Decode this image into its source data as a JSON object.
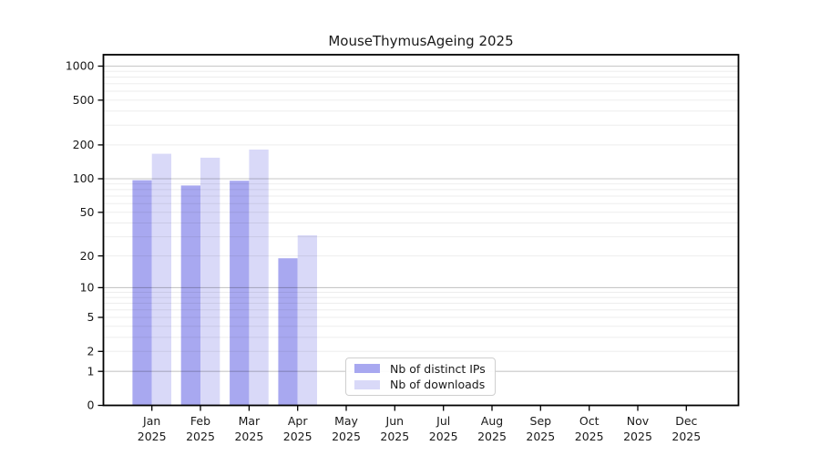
{
  "chart_data": {
    "type": "bar",
    "title": "MouseThymusAgeing 2025",
    "categories": [
      "Jan",
      "Feb",
      "Mar",
      "Apr",
      "May",
      "Jun",
      "Jul",
      "Aug",
      "Sep",
      "Oct",
      "Nov",
      "Dec"
    ],
    "year_label": "2025",
    "series": [
      {
        "name": "Nb of distinct IPs",
        "color": "#a8a8f0",
        "values": [
          97,
          87,
          96,
          19,
          0,
          0,
          0,
          0,
          0,
          0,
          0,
          0
        ]
      },
      {
        "name": "Nb of downloads",
        "color": "#d9d9f8",
        "values": [
          167,
          154,
          182,
          31,
          0,
          0,
          0,
          0,
          0,
          0,
          0,
          0
        ]
      }
    ],
    "y_axis": {
      "scale": "log10(value+1)",
      "tick_values": [
        0,
        1,
        2,
        5,
        10,
        20,
        50,
        100,
        200,
        500,
        1000
      ],
      "min": 0,
      "max": 1000
    },
    "x_axis": {
      "tick_label_format": "month-over-year"
    },
    "grid": {
      "on": true,
      "minor_color": "rgba(0,0,0,0.07)",
      "major_color": "rgba(0,0,0,0.22)",
      "major_values": [
        1,
        10,
        100,
        1000
      ],
      "minor_values": [
        2,
        3,
        4,
        5,
        6,
        7,
        8,
        9,
        20,
        30,
        40,
        50,
        60,
        70,
        80,
        90,
        200,
        300,
        400,
        500,
        600,
        700,
        800,
        900
      ]
    },
    "legend": {
      "position": "inside-bottom-center"
    },
    "colors": {
      "text": "#1a1a1a",
      "spine": "#000000"
    }
  }
}
